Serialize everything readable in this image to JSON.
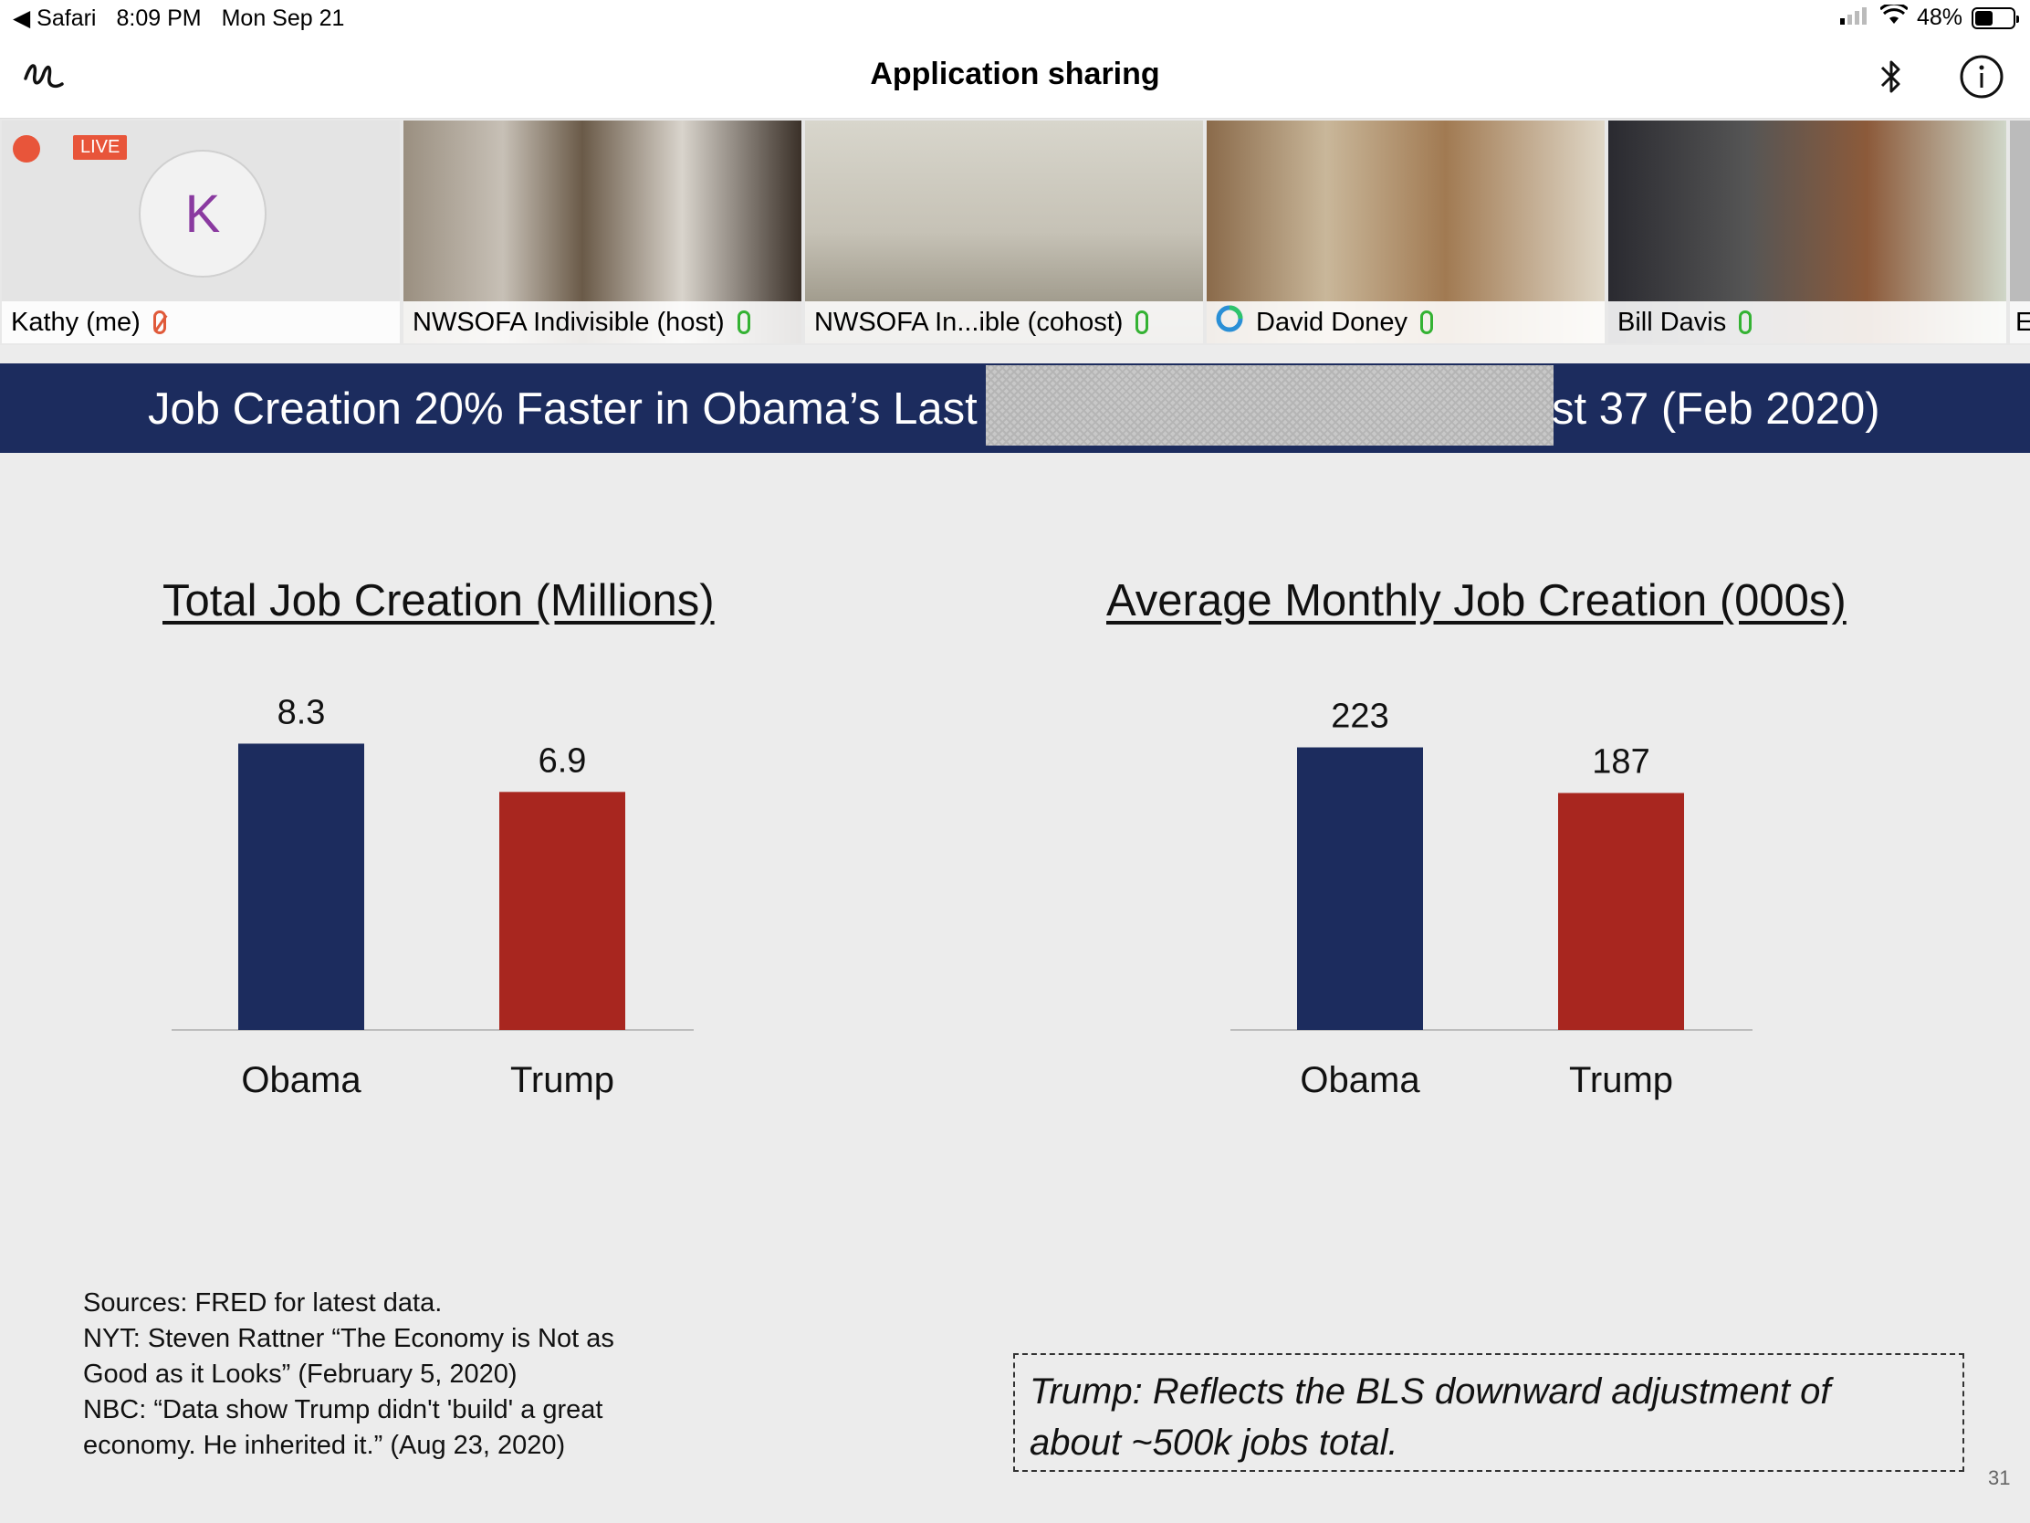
{
  "status_bar": {
    "back_app": "Safari",
    "time": "8:09 PM",
    "date": "Mon Sep 21",
    "battery_text": "48%",
    "battery_level": 0.48
  },
  "nav": {
    "title": "Application sharing"
  },
  "participants": [
    {
      "name": "Kathy (me)",
      "initial": "K",
      "live_label": "LIVE",
      "muted": true
    },
    {
      "name": "NWSOFA Indivisible (host)",
      "muted": false
    },
    {
      "name": "NWSOFA In...ible (cohost)",
      "muted": false
    },
    {
      "name": "David Doney",
      "muted": false
    },
    {
      "name": "Bill Davis",
      "muted": false
    },
    {
      "name": "E",
      "muted": false
    }
  ],
  "slide": {
    "banner_left": "Job Creation 20% Faster in Obama’s Last",
    "banner_right": "st 37 (Feb 2020)",
    "sources": [
      "Sources:   FRED for latest data.",
      "NYT:  Steven Rattner “The Economy is Not as",
      "Good as it Looks” (February 5, 2020)",
      "NBC:  “Data show Trump didn't 'build' a great",
      "economy. He inherited it.” (Aug 23, 2020)"
    ],
    "note_line1": "Trump:  Reflects the BLS downward adjustment of",
    "note_line2": "about ~500k jobs total.",
    "page_number": "31"
  },
  "chart_data": [
    {
      "type": "bar",
      "title": "Total Job Creation (Millions)",
      "categories": [
        "Obama",
        "Trump"
      ],
      "values": [
        8.3,
        6.9
      ],
      "value_labels": [
        "8.3",
        "6.9"
      ],
      "colors": [
        "#1c2c5e",
        "#a8261f"
      ],
      "ylim": [
        0,
        9.0
      ],
      "grid": false,
      "legend": "none"
    },
    {
      "type": "bar",
      "title": "Average Monthly Job Creation (000s)",
      "categories": [
        "Obama",
        "Trump"
      ],
      "values": [
        223,
        187
      ],
      "value_labels": [
        "223",
        "187"
      ],
      "colors": [
        "#1c2c5e",
        "#a8261f"
      ],
      "ylim": [
        0,
        245
      ],
      "grid": false,
      "legend": "none"
    }
  ]
}
